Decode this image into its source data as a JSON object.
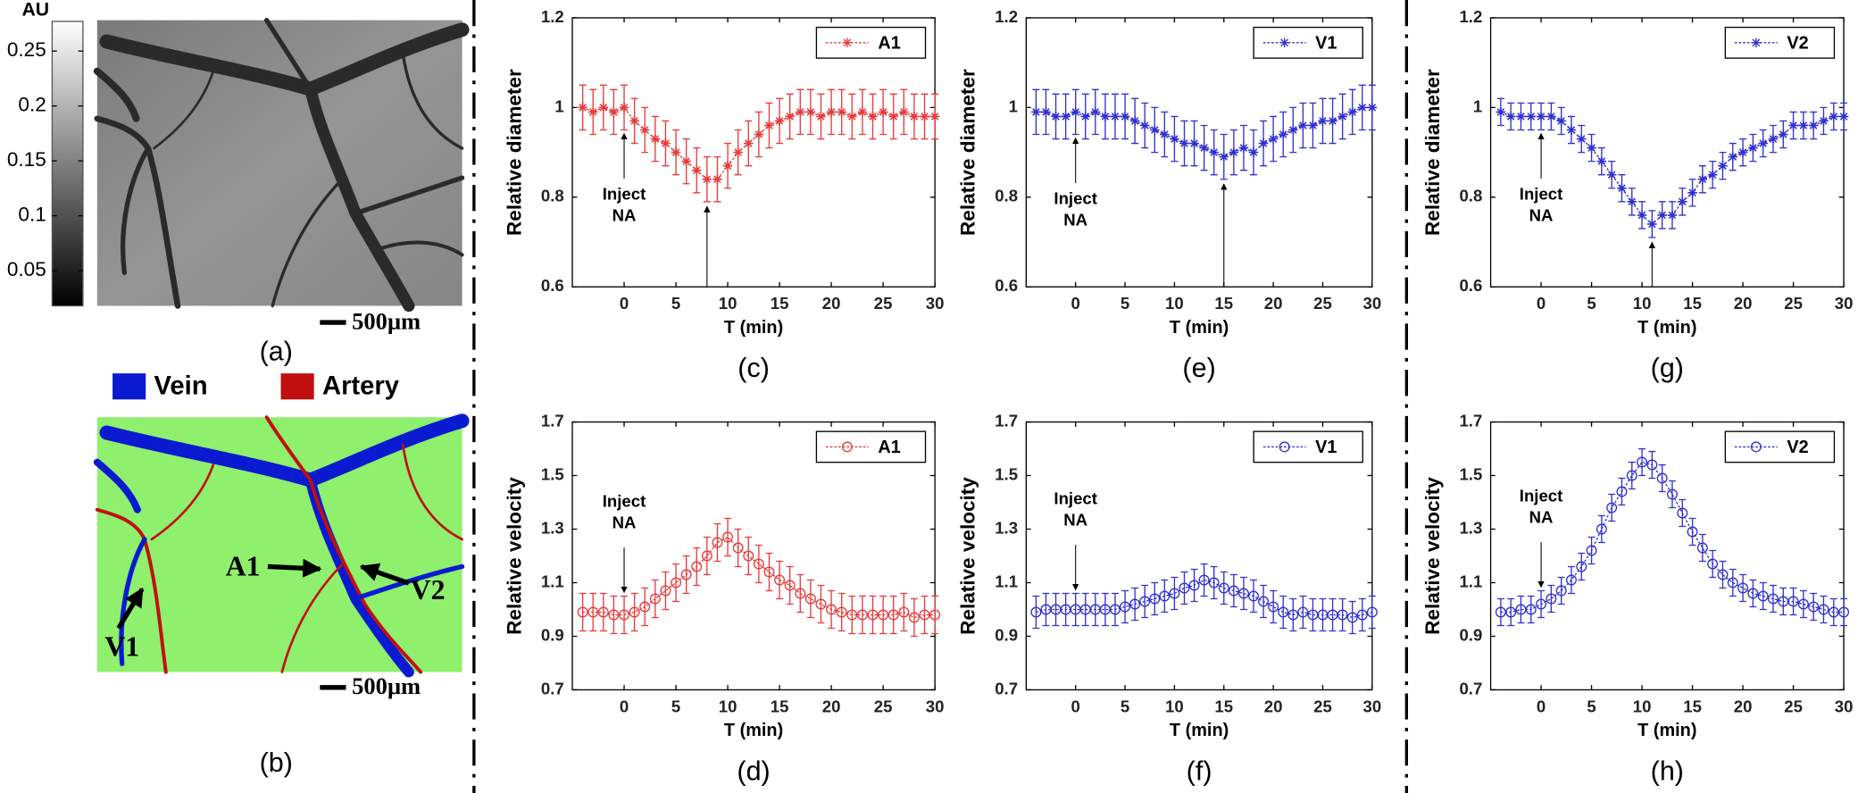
{
  "panels": {
    "a": {
      "label": "(a)",
      "colorbar": {
        "title": "AU",
        "lim": [
          0.018,
          0.277
        ],
        "ticks": [
          0.05,
          0.1,
          0.15,
          0.2,
          0.25
        ]
      },
      "scale_bar": "500μm"
    },
    "b": {
      "label": "(b)",
      "legend": [
        {
          "name": "Vein",
          "color": "#0a1ad0"
        },
        {
          "name": "Artery",
          "color": "#c01010"
        }
      ],
      "vessel_labels": [
        "A1",
        "V1",
        "V2"
      ],
      "scale_bar": "500μm"
    }
  },
  "chart_data": [
    {
      "type": "line",
      "panel_label": "(c)",
      "xlabel": "T (min)",
      "ylabel": "Relative diameter",
      "x": [
        -4,
        -3,
        -2,
        -1,
        0,
        1,
        2,
        3,
        4,
        5,
        6,
        7,
        8,
        9,
        10,
        11,
        12,
        13,
        14,
        15,
        16,
        17,
        18,
        19,
        20,
        21,
        22,
        23,
        24,
        25,
        26,
        27,
        28,
        29,
        30
      ],
      "xlim": [
        -5,
        30
      ],
      "xticks": [
        0,
        5,
        10,
        15,
        20,
        25,
        30
      ],
      "ylim": [
        0.6,
        1.2
      ],
      "yticks": [
        0.6,
        0.8,
        1,
        1.2
      ],
      "legend": "upper right",
      "annotations": [
        {
          "lines": [
            "Inject",
            "NA"
          ]
        }
      ],
      "series": [
        {
          "name": "A1",
          "color": "#e8393a",
          "marker": "star",
          "error": 0.05,
          "values": [
            1.0,
            0.99,
            1.0,
            0.99,
            1.0,
            0.97,
            0.95,
            0.93,
            0.92,
            0.9,
            0.88,
            0.86,
            0.84,
            0.84,
            0.87,
            0.9,
            0.92,
            0.94,
            0.96,
            0.97,
            0.98,
            0.99,
            0.99,
            0.98,
            0.99,
            0.99,
            0.98,
            0.99,
            0.98,
            0.99,
            0.98,
            0.99,
            0.98,
            0.98,
            0.98
          ]
        }
      ]
    },
    {
      "type": "line",
      "panel_label": "(e)",
      "xlabel": "T (min)",
      "ylabel": "Relative diameter",
      "x": [
        -4,
        -3,
        -2,
        -1,
        0,
        1,
        2,
        3,
        4,
        5,
        6,
        7,
        8,
        9,
        10,
        11,
        12,
        13,
        14,
        15,
        16,
        17,
        18,
        19,
        20,
        21,
        22,
        23,
        24,
        25,
        26,
        27,
        28,
        29,
        30
      ],
      "xlim": [
        -5,
        30
      ],
      "xticks": [
        0,
        5,
        10,
        15,
        20,
        25,
        30
      ],
      "ylim": [
        0.6,
        1.2
      ],
      "yticks": [
        0.6,
        0.8,
        1,
        1.2
      ],
      "legend": "upper right",
      "annotations": [
        {
          "lines": [
            "Inject",
            "NA"
          ]
        }
      ],
      "series": [
        {
          "name": "V1",
          "color": "#3030d0",
          "marker": "star",
          "error": 0.05,
          "values": [
            0.99,
            0.99,
            0.98,
            0.98,
            0.99,
            0.98,
            0.99,
            0.98,
            0.98,
            0.98,
            0.97,
            0.96,
            0.95,
            0.94,
            0.93,
            0.92,
            0.92,
            0.91,
            0.9,
            0.89,
            0.9,
            0.91,
            0.9,
            0.92,
            0.93,
            0.94,
            0.95,
            0.96,
            0.96,
            0.97,
            0.97,
            0.98,
            0.99,
            1.0,
            1.0
          ]
        }
      ]
    },
    {
      "type": "line",
      "panel_label": "(g)",
      "xlabel": "T (min)",
      "ylabel": "Relative diameter",
      "x": [
        -4,
        -3,
        -2,
        -1,
        0,
        1,
        2,
        3,
        4,
        5,
        6,
        7,
        8,
        9,
        10,
        11,
        12,
        13,
        14,
        15,
        16,
        17,
        18,
        19,
        20,
        21,
        22,
        23,
        24,
        25,
        26,
        27,
        28,
        29,
        30
      ],
      "xlim": [
        -5,
        30
      ],
      "xticks": [
        0,
        5,
        10,
        15,
        20,
        25,
        30
      ],
      "ylim": [
        0.6,
        1.2
      ],
      "yticks": [
        0.6,
        0.8,
        1,
        1.2
      ],
      "legend": "upper right",
      "annotations": [
        {
          "lines": [
            "Inject",
            "NA"
          ]
        }
      ],
      "series": [
        {
          "name": "V2",
          "color": "#3030d0",
          "marker": "star",
          "error": 0.03,
          "values": [
            0.99,
            0.98,
            0.98,
            0.98,
            0.98,
            0.98,
            0.97,
            0.95,
            0.93,
            0.91,
            0.88,
            0.85,
            0.82,
            0.79,
            0.76,
            0.74,
            0.76,
            0.76,
            0.79,
            0.81,
            0.84,
            0.85,
            0.87,
            0.89,
            0.9,
            0.91,
            0.92,
            0.93,
            0.94,
            0.96,
            0.96,
            0.96,
            0.97,
            0.98,
            0.98
          ]
        }
      ]
    },
    {
      "type": "line",
      "panel_label": "(d)",
      "xlabel": "T (min)",
      "ylabel": "Relative velocity",
      "x": [
        -4,
        -3,
        -2,
        -1,
        0,
        1,
        2,
        3,
        4,
        5,
        6,
        7,
        8,
        9,
        10,
        11,
        12,
        13,
        14,
        15,
        16,
        17,
        18,
        19,
        20,
        21,
        22,
        23,
        24,
        25,
        26,
        27,
        28,
        29,
        30
      ],
      "xlim": [
        -5,
        30
      ],
      "xticks": [
        0,
        5,
        10,
        15,
        20,
        25,
        30
      ],
      "ylim": [
        0.7,
        1.7
      ],
      "yticks": [
        0.7,
        0.9,
        1.1,
        1.3,
        1.5,
        1.7
      ],
      "legend": "upper right",
      "annotations": [
        {
          "lines": [
            "Inject",
            "NA"
          ]
        }
      ],
      "series": [
        {
          "name": "A1",
          "color": "#e8393a",
          "marker": "circle",
          "error": 0.07,
          "values": [
            0.99,
            0.99,
            0.99,
            0.98,
            0.98,
            0.99,
            1.01,
            1.04,
            1.07,
            1.1,
            1.13,
            1.16,
            1.2,
            1.25,
            1.27,
            1.23,
            1.2,
            1.17,
            1.14,
            1.11,
            1.09,
            1.06,
            1.04,
            1.02,
            1.0,
            0.99,
            0.98,
            0.98,
            0.98,
            0.98,
            0.98,
            0.99,
            0.97,
            0.98,
            0.98
          ]
        }
      ]
    },
    {
      "type": "line",
      "panel_label": "(f)",
      "xlabel": "T (min)",
      "ylabel": "Relative velocity",
      "x": [
        -4,
        -3,
        -2,
        -1,
        0,
        1,
        2,
        3,
        4,
        5,
        6,
        7,
        8,
        9,
        10,
        11,
        12,
        13,
        14,
        15,
        16,
        17,
        18,
        19,
        20,
        21,
        22,
        23,
        24,
        25,
        26,
        27,
        28,
        29,
        30
      ],
      "xlim": [
        -5,
        30
      ],
      "xticks": [
        0,
        5,
        10,
        15,
        20,
        25,
        30
      ],
      "ylim": [
        0.7,
        1.7
      ],
      "yticks": [
        0.7,
        0.9,
        1.1,
        1.3,
        1.5,
        1.7
      ],
      "legend": "upper right",
      "annotations": [
        {
          "lines": [
            "Inject",
            "NA"
          ]
        }
      ],
      "series": [
        {
          "name": "V1",
          "color": "#3030d0",
          "marker": "circle",
          "error": 0.06,
          "values": [
            0.99,
            1.0,
            1.0,
            1.0,
            1.0,
            1.0,
            1.0,
            1.0,
            1.0,
            1.01,
            1.02,
            1.03,
            1.04,
            1.05,
            1.06,
            1.08,
            1.09,
            1.11,
            1.1,
            1.08,
            1.07,
            1.06,
            1.05,
            1.03,
            1.01,
            0.99,
            0.98,
            0.99,
            0.98,
            0.98,
            0.98,
            0.98,
            0.97,
            0.98,
            0.99
          ]
        }
      ]
    },
    {
      "type": "line",
      "panel_label": "(h)",
      "xlabel": "T (min)",
      "ylabel": "Relative velocity",
      "x": [
        -4,
        -3,
        -2,
        -1,
        0,
        1,
        2,
        3,
        4,
        5,
        6,
        7,
        8,
        9,
        10,
        11,
        12,
        13,
        14,
        15,
        16,
        17,
        18,
        19,
        20,
        21,
        22,
        23,
        24,
        25,
        26,
        27,
        28,
        29,
        30
      ],
      "xlim": [
        -5,
        30
      ],
      "xticks": [
        0,
        5,
        10,
        15,
        20,
        25,
        30
      ],
      "ylim": [
        0.7,
        1.7
      ],
      "yticks": [
        0.7,
        0.9,
        1.1,
        1.3,
        1.5,
        1.7
      ],
      "legend": "upper right",
      "annotations": [
        {
          "lines": [
            "Inject",
            "NA"
          ]
        }
      ],
      "series": [
        {
          "name": "V2",
          "color": "#3030d0",
          "marker": "circle",
          "error": 0.05,
          "values": [
            0.99,
            0.99,
            1.0,
            1.0,
            1.02,
            1.04,
            1.07,
            1.11,
            1.16,
            1.22,
            1.3,
            1.38,
            1.44,
            1.5,
            1.55,
            1.54,
            1.49,
            1.43,
            1.36,
            1.29,
            1.23,
            1.17,
            1.13,
            1.1,
            1.08,
            1.06,
            1.05,
            1.04,
            1.03,
            1.03,
            1.02,
            1.01,
            1.0,
            0.99,
            0.99
          ]
        }
      ]
    }
  ]
}
